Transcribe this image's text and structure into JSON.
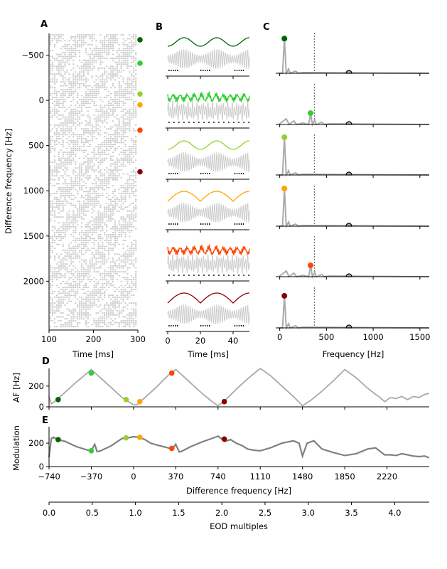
{
  "figure": {
    "panel_labels": [
      "A",
      "B",
      "C",
      "D",
      "E"
    ]
  },
  "colors": {
    "dark_green": "#006400",
    "lime_green": "#32cd32",
    "yellow_green": "#9acd32",
    "orange": "#ffa500",
    "orange_red": "#ff4500",
    "dark_red": "#8b0000",
    "gray_trace": "#a9a9a9",
    "raster_gray": "#c8c8c8",
    "modulation_gray": "#808080"
  },
  "chart_data": [
    {
      "id": "A",
      "type": "scatter",
      "title": "",
      "xlabel": "Time [ms]",
      "ylabel": "Difference frequency [Hz]",
      "xlim": [
        100,
        300
      ],
      "ylim": [
        2540,
        -740
      ],
      "xticks": [
        100,
        200,
        300
      ],
      "yticks": [
        -500,
        0,
        500,
        1000,
        1500,
        2000
      ],
      "ytick_labels": [
        "−500",
        "0",
        "500",
        "1000",
        "1500",
        "2000"
      ],
      "description": "spike raster across difference frequencies",
      "markers": [
        {
          "df": -670,
          "color": "dark_green"
        },
        {
          "df": -410,
          "color": "lime_green"
        },
        {
          "df": -70,
          "color": "yellow_green"
        },
        {
          "df": 50,
          "color": "orange"
        },
        {
          "df": 330,
          "color": "orange_red"
        },
        {
          "df": 790,
          "color": "dark_red"
        }
      ]
    },
    {
      "id": "B",
      "type": "line",
      "xlabel": "Time [ms]",
      "xlim": [
        0,
        50
      ],
      "xticks": [
        0,
        20,
        40
      ],
      "rows": [
        {
          "color": "dark_green",
          "beat_hz": 50,
          "style": "smooth"
        },
        {
          "color": "lime_green",
          "beat_hz": 330,
          "style": "jagged"
        },
        {
          "color": "yellow_green",
          "beat_hz": 50,
          "style": "smooth"
        },
        {
          "color": "orange",
          "beat_hz": 50,
          "style": "smooth"
        },
        {
          "color": "orange_red",
          "beat_hz": 330,
          "style": "jagged"
        },
        {
          "color": "dark_red",
          "beat_hz": 50,
          "style": "smooth"
        }
      ]
    },
    {
      "id": "C",
      "type": "line",
      "xlabel": "Frequency [Hz]",
      "xlim": [
        -20,
        1600
      ],
      "xticks": [
        0,
        500,
        1000,
        1500
      ],
      "dashed_line_x": 370,
      "eod_marker_x": 740,
      "rows": [
        {
          "color": "dark_green",
          "peak_hz": 50,
          "peak_height": 0.92
        },
        {
          "color": "lime_green",
          "peak_hz": 330,
          "peak_height": 0.3
        },
        {
          "color": "yellow_green",
          "peak_hz": 50,
          "peak_height": 1.0
        },
        {
          "color": "orange",
          "peak_hz": 50,
          "peak_height": 1.0
        },
        {
          "color": "orange_red",
          "peak_hz": 330,
          "peak_height": 0.3
        },
        {
          "color": "dark_red",
          "peak_hz": 50,
          "peak_height": 0.85
        }
      ]
    },
    {
      "id": "D",
      "type": "line",
      "ylabel": "AF [Hz]",
      "xlim": [
        -740,
        2590
      ],
      "ylim": [
        0,
        370
      ],
      "yticks": [
        0,
        200
      ],
      "series": [
        {
          "name": "AF",
          "x": [
            -740,
            -720,
            -690,
            -600,
            -500,
            -400,
            -370,
            -300,
            -200,
            -100,
            0,
            30,
            100,
            200,
            300,
            370,
            400,
            500,
            600,
            700,
            740,
            800,
            900,
            1000,
            1110,
            1200,
            1300,
            1400,
            1480,
            1550,
            1650,
            1750,
            1850,
            1950,
            2050,
            2120,
            2160,
            2200,
            2250,
            2300,
            2350,
            2400,
            2450,
            2500,
            2550,
            2590
          ],
          "y": [
            100,
            30,
            50,
            140,
            240,
            330,
            360,
            290,
            190,
            90,
            20,
            20,
            90,
            190,
            300,
            360,
            330,
            230,
            130,
            40,
            10,
            60,
            170,
            270,
            370,
            300,
            200,
            100,
            10,
            60,
            150,
            250,
            360,
            280,
            180,
            120,
            90,
            50,
            90,
            80,
            100,
            70,
            100,
            90,
            120,
            130
          ]
        }
      ],
      "points": [
        {
          "x": -660,
          "y": 70,
          "color": "dark_green"
        },
        {
          "x": -370,
          "y": 325,
          "color": "lime_green"
        },
        {
          "x": -65,
          "y": 70,
          "color": "yellow_green"
        },
        {
          "x": 55,
          "y": 50,
          "color": "orange"
        },
        {
          "x": 335,
          "y": 325,
          "color": "orange_red"
        },
        {
          "x": 795,
          "y": 50,
          "color": "dark_red"
        }
      ]
    },
    {
      "id": "E",
      "type": "line",
      "ylabel": "Modulation",
      "xlabel": "Difference frequency [Hz]",
      "xlim": [
        -740,
        2590
      ],
      "ylim": [
        0,
        340
      ],
      "yticks": [
        0,
        200
      ],
      "xticks": [
        -740,
        -370,
        0,
        370,
        740,
        1110,
        1480,
        1850,
        2220
      ],
      "xtick_labels": [
        "−740",
        "−370",
        "0",
        "370",
        "740",
        "1110",
        "1480",
        "1850",
        "2220"
      ],
      "series": [
        {
          "name": "Modulation",
          "x": [
            -740,
            -720,
            -700,
            -660,
            -600,
            -500,
            -400,
            -370,
            -340,
            -320,
            -300,
            -200,
            -100,
            -50,
            0,
            50,
            100,
            150,
            200,
            300,
            340,
            370,
            400,
            420,
            500,
            600,
            700,
            740,
            800,
            850,
            900,
            950,
            1000,
            1050,
            1110,
            1200,
            1300,
            1400,
            1450,
            1480,
            1520,
            1580,
            1650,
            1750,
            1850,
            1950,
            2050,
            2120,
            2160,
            2200,
            2250,
            2300,
            2350,
            2400,
            2450,
            2500,
            2550,
            2590
          ],
          "y": [
            80,
            240,
            250,
            230,
            215,
            170,
            140,
            135,
            190,
            130,
            130,
            175,
            240,
            245,
            255,
            250,
            230,
            200,
            185,
            160,
            150,
            190,
            125,
            130,
            170,
            210,
            245,
            260,
            215,
            230,
            200,
            180,
            150,
            140,
            135,
            160,
            200,
            220,
            200,
            90,
            200,
            220,
            150,
            120,
            95,
            110,
            150,
            160,
            130,
            100,
            100,
            95,
            110,
            100,
            90,
            85,
            90,
            75
          ]
        }
      ],
      "points": [
        {
          "x": -660,
          "y": 230,
          "color": "dark_green"
        },
        {
          "x": -370,
          "y": 135,
          "color": "lime_green"
        },
        {
          "x": -65,
          "y": 245,
          "color": "yellow_green"
        },
        {
          "x": 55,
          "y": 250,
          "color": "orange"
        },
        {
          "x": 335,
          "y": 155,
          "color": "orange_red"
        },
        {
          "x": 795,
          "y": 235,
          "color": "dark_red"
        }
      ]
    },
    {
      "id": "EOD-axis",
      "type": "line",
      "xlabel": "EOD multiples",
      "xlim": [
        0,
        4.4
      ],
      "xticks": [
        0.0,
        0.5,
        1.0,
        1.5,
        2.0,
        2.5,
        3.0,
        3.5,
        4.0
      ],
      "xtick_labels": [
        "0.0",
        "0.5",
        "1.0",
        "1.5",
        "2.0",
        "2.5",
        "3.0",
        "3.5",
        "4.0"
      ]
    }
  ]
}
